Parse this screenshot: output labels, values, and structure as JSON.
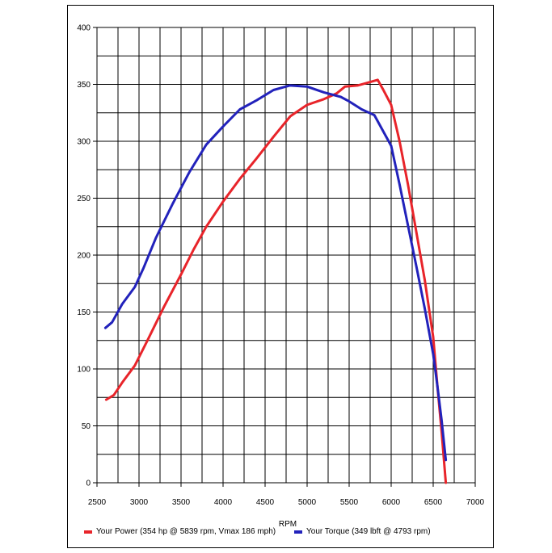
{
  "chart_data": {
    "type": "line",
    "title": "",
    "xlabel": "RPM",
    "ylabel": "",
    "xlim": [
      2500,
      7000
    ],
    "ylim": [
      0,
      400
    ],
    "x_ticks": [
      2500,
      3000,
      3500,
      4000,
      4500,
      5000,
      5500,
      6000,
      6500,
      7000
    ],
    "y_ticks": [
      0,
      50,
      100,
      150,
      200,
      250,
      300,
      350,
      400
    ],
    "x_minor_step": 250,
    "y_minor_step": 25,
    "grid": true,
    "legend_position": "bottom",
    "series": [
      {
        "name": "Your Power (354 hp @ 5839 rpm, Vmax 186 mph)",
        "color": "#e8242a",
        "x": [
          2610,
          2700,
          2800,
          2950,
          3100,
          3300,
          3500,
          3650,
          3800,
          4000,
          4200,
          4400,
          4600,
          4800,
          5000,
          5200,
          5350,
          5450,
          5600,
          5700,
          5839,
          5900,
          6000,
          6100,
          6200,
          6300,
          6400,
          6500,
          6550,
          6600,
          6650
        ],
        "values": [
          73,
          77,
          88,
          103,
          125,
          155,
          183,
          205,
          225,
          247,
          267,
          285,
          304,
          322,
          332,
          337,
          342,
          348,
          349,
          351,
          354,
          346,
          332,
          300,
          262,
          220,
          178,
          128,
          85,
          45,
          0
        ]
      },
      {
        "name": "Your Torque (349 lbft @ 4793 rpm)",
        "color": "#2222bb",
        "x": [
          2600,
          2680,
          2800,
          2950,
          3050,
          3200,
          3400,
          3600,
          3800,
          4000,
          4200,
          4400,
          4600,
          4793,
          5000,
          5200,
          5400,
          5500,
          5650,
          5800,
          6000,
          6100,
          6200,
          6300,
          6400,
          6500,
          6550,
          6600,
          6650
        ],
        "values": [
          136,
          141,
          157,
          172,
          188,
          215,
          245,
          273,
          297,
          313,
          328,
          336,
          345,
          349,
          348,
          343,
          339,
          335,
          328,
          323,
          296,
          262,
          226,
          190,
          153,
          113,
          85,
          55,
          20
        ]
      }
    ]
  }
}
